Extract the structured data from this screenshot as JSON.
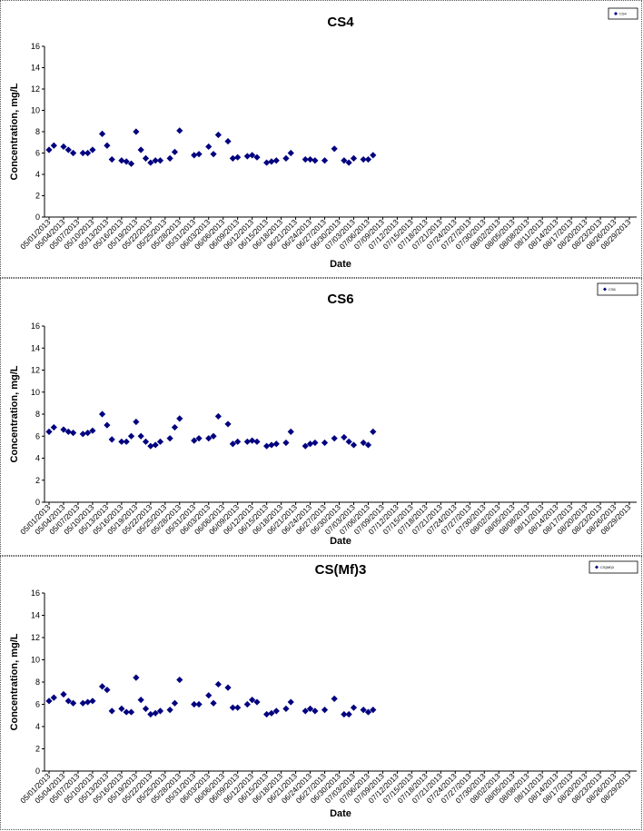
{
  "chart_data": [
    {
      "type": "scatter",
      "title": "CS4",
      "xlabel": "Date",
      "ylabel": "Concentration, mg/L",
      "ylim": [
        0,
        16
      ],
      "yticks": [
        "0",
        "2",
        "4",
        "6",
        "8",
        "10",
        "12",
        "14",
        "16"
      ],
      "xticks": [
        "05/01/2013",
        "05/04/2013",
        "05/07/2013",
        "05/10/2013",
        "05/13/2013",
        "05/16/2013",
        "05/19/2013",
        "05/22/2013",
        "05/25/2013",
        "05/28/2013",
        "05/31/2013",
        "06/03/2013",
        "06/06/2013",
        "06/09/2013",
        "06/12/2013",
        "06/15/2013",
        "06/18/2013",
        "06/21/2013",
        "06/24/2013",
        "06/27/2013",
        "06/30/2013",
        "07/03/2013",
        "07/06/2013",
        "07/09/2013",
        "07/12/2013",
        "07/15/2013",
        "07/18/2013",
        "07/21/2013",
        "07/24/2013",
        "07/27/2013",
        "07/30/2013",
        "08/02/2013",
        "08/05/2013",
        "08/08/2013",
        "08/11/2013",
        "08/14/2013",
        "08/17/2013",
        "08/20/2013",
        "08/23/2013",
        "08/26/2013",
        "08/29/2013"
      ],
      "legend_text": "CS4",
      "legend_position": "top-right",
      "marker_color": "#00007f",
      "points": [
        [
          "05/01/2013",
          6.3
        ],
        [
          "05/02/2013",
          6.7
        ],
        [
          "05/04/2013",
          6.6
        ],
        [
          "05/05/2013",
          6.3
        ],
        [
          "05/06/2013",
          6.0
        ],
        [
          "05/08/2013",
          6.0
        ],
        [
          "05/09/2013",
          6.0
        ],
        [
          "05/10/2013",
          6.3
        ],
        [
          "05/12/2013",
          7.8
        ],
        [
          "05/13/2013",
          6.7
        ],
        [
          "05/14/2013",
          5.4
        ],
        [
          "05/16/2013",
          5.3
        ],
        [
          "05/17/2013",
          5.2
        ],
        [
          "05/18/2013",
          5.0
        ],
        [
          "05/19/2013",
          8.0
        ],
        [
          "05/20/2013",
          6.3
        ],
        [
          "05/21/2013",
          5.5
        ],
        [
          "05/22/2013",
          5.1
        ],
        [
          "05/23/2013",
          5.3
        ],
        [
          "05/24/2013",
          5.3
        ],
        [
          "05/26/2013",
          5.5
        ],
        [
          "05/27/2013",
          6.1
        ],
        [
          "05/28/2013",
          8.1
        ],
        [
          "05/31/2013",
          5.8
        ],
        [
          "06/01/2013",
          5.9
        ],
        [
          "06/03/2013",
          6.6
        ],
        [
          "06/04/2013",
          5.9
        ],
        [
          "06/05/2013",
          7.7
        ],
        [
          "06/07/2013",
          7.1
        ],
        [
          "06/08/2013",
          5.5
        ],
        [
          "06/09/2013",
          5.6
        ],
        [
          "06/11/2013",
          5.7
        ],
        [
          "06/12/2013",
          5.8
        ],
        [
          "06/13/2013",
          5.6
        ],
        [
          "06/15/2013",
          5.1
        ],
        [
          "06/16/2013",
          5.2
        ],
        [
          "06/17/2013",
          5.3
        ],
        [
          "06/19/2013",
          5.5
        ],
        [
          "06/20/2013",
          6.0
        ],
        [
          "06/23/2013",
          5.4
        ],
        [
          "06/24/2013",
          5.4
        ],
        [
          "06/25/2013",
          5.3
        ],
        [
          "06/27/2013",
          5.3
        ],
        [
          "06/29/2013",
          6.4
        ],
        [
          "07/01/2013",
          5.3
        ],
        [
          "07/02/2013",
          5.1
        ],
        [
          "07/03/2013",
          5.5
        ],
        [
          "07/05/2013",
          5.4
        ],
        [
          "07/06/2013",
          5.4
        ],
        [
          "07/07/2013",
          5.8
        ]
      ]
    },
    {
      "type": "scatter",
      "title": "CS6",
      "xlabel": "Date",
      "ylabel": "Concentration, mg/L",
      "ylim": [
        0,
        16
      ],
      "yticks": [
        "0",
        "2",
        "4",
        "6",
        "8",
        "10",
        "12",
        "14",
        "16"
      ],
      "xticks": [
        "05/01/2013",
        "05/04/2013",
        "05/07/2013",
        "05/10/2013",
        "05/13/2013",
        "05/16/2013",
        "05/19/2013",
        "05/22/2013",
        "05/25/2013",
        "05/28/2013",
        "05/31/2013",
        "06/03/2013",
        "06/06/2013",
        "06/09/2013",
        "06/12/2013",
        "06/15/2013",
        "06/18/2013",
        "06/21/2013",
        "06/24/2013",
        "06/27/2013",
        "06/30/2013",
        "07/03/2013",
        "07/06/2013",
        "07/09/2013",
        "07/12/2013",
        "07/15/2013",
        "07/18/2013",
        "07/21/2013",
        "07/24/2013",
        "07/27/2013",
        "07/30/2013",
        "08/02/2013",
        "08/05/2013",
        "08/08/2013",
        "08/11/2013",
        "08/14/2013",
        "08/17/2013",
        "08/20/2013",
        "08/23/2013",
        "08/26/2013",
        "08/29/2013"
      ],
      "legend_text": "CS6",
      "legend_position": "top-right",
      "marker_color": "#00007f",
      "points": [
        [
          "05/01/2013",
          6.4
        ],
        [
          "05/02/2013",
          6.8
        ],
        [
          "05/04/2013",
          6.6
        ],
        [
          "05/05/2013",
          6.4
        ],
        [
          "05/06/2013",
          6.3
        ],
        [
          "05/08/2013",
          6.2
        ],
        [
          "05/09/2013",
          6.3
        ],
        [
          "05/10/2013",
          6.5
        ],
        [
          "05/12/2013",
          8.0
        ],
        [
          "05/13/2013",
          7.0
        ],
        [
          "05/14/2013",
          5.7
        ],
        [
          "05/16/2013",
          5.5
        ],
        [
          "05/17/2013",
          5.5
        ],
        [
          "05/18/2013",
          6.0
        ],
        [
          "05/19/2013",
          7.3
        ],
        [
          "05/20/2013",
          6.0
        ],
        [
          "05/21/2013",
          5.5
        ],
        [
          "05/22/2013",
          5.1
        ],
        [
          "05/23/2013",
          5.2
        ],
        [
          "05/24/2013",
          5.5
        ],
        [
          "05/26/2013",
          5.8
        ],
        [
          "05/27/2013",
          6.8
        ],
        [
          "05/28/2013",
          7.6
        ],
        [
          "05/31/2013",
          5.6
        ],
        [
          "06/01/2013",
          5.8
        ],
        [
          "06/03/2013",
          5.8
        ],
        [
          "06/04/2013",
          6.0
        ],
        [
          "06/05/2013",
          7.8
        ],
        [
          "06/07/2013",
          7.1
        ],
        [
          "06/08/2013",
          5.3
        ],
        [
          "06/09/2013",
          5.5
        ],
        [
          "06/11/2013",
          5.5
        ],
        [
          "06/12/2013",
          5.6
        ],
        [
          "06/13/2013",
          5.5
        ],
        [
          "06/15/2013",
          5.1
        ],
        [
          "06/16/2013",
          5.2
        ],
        [
          "06/17/2013",
          5.3
        ],
        [
          "06/19/2013",
          5.4
        ],
        [
          "06/20/2013",
          6.4
        ],
        [
          "06/23/2013",
          5.1
        ],
        [
          "06/24/2013",
          5.3
        ],
        [
          "06/25/2013",
          5.4
        ],
        [
          "06/27/2013",
          5.4
        ],
        [
          "06/29/2013",
          5.8
        ],
        [
          "07/01/2013",
          5.9
        ],
        [
          "07/02/2013",
          5.5
        ],
        [
          "07/03/2013",
          5.2
        ],
        [
          "07/05/2013",
          5.4
        ],
        [
          "07/06/2013",
          5.2
        ],
        [
          "07/07/2013",
          6.4
        ]
      ]
    },
    {
      "type": "scatter",
      "title": "CS(Mf)3",
      "xlabel": "Date",
      "ylabel": "Concentration, mg/L",
      "ylim": [
        0,
        16
      ],
      "yticks": [
        "0",
        "2",
        "4",
        "6",
        "8",
        "10",
        "12",
        "14",
        "16"
      ],
      "xticks": [
        "05/01/2013",
        "05/04/2013",
        "05/07/2013",
        "05/10/2013",
        "05/13/2013",
        "05/16/2013",
        "05/19/2013",
        "05/22/2013",
        "05/25/2013",
        "05/28/2013",
        "05/31/2013",
        "06/03/2013",
        "06/06/2013",
        "06/09/2013",
        "06/12/2013",
        "06/15/2013",
        "06/18/2013",
        "06/21/2013",
        "06/24/2013",
        "06/27/2013",
        "06/30/2013",
        "07/03/2013",
        "07/06/2013",
        "07/09/2013",
        "07/12/2013",
        "07/15/2013",
        "07/18/2013",
        "07/21/2013",
        "07/24/2013",
        "07/27/2013",
        "07/30/2013",
        "08/02/2013",
        "08/05/2013",
        "08/08/2013",
        "08/11/2013",
        "08/14/2013",
        "08/17/2013",
        "08/20/2013",
        "08/23/2013",
        "08/26/2013",
        "08/29/2013"
      ],
      "legend_text": "CS(Mf)3",
      "legend_position": "top-right",
      "marker_color": "#00007f",
      "points": [
        [
          "05/01/2013",
          6.3
        ],
        [
          "05/02/2013",
          6.6
        ],
        [
          "05/04/2013",
          6.9
        ],
        [
          "05/05/2013",
          6.3
        ],
        [
          "05/06/2013",
          6.1
        ],
        [
          "05/08/2013",
          6.1
        ],
        [
          "05/09/2013",
          6.2
        ],
        [
          "05/10/2013",
          6.3
        ],
        [
          "05/12/2013",
          7.6
        ],
        [
          "05/13/2013",
          7.3
        ],
        [
          "05/14/2013",
          5.4
        ],
        [
          "05/16/2013",
          5.6
        ],
        [
          "05/17/2013",
          5.3
        ],
        [
          "05/18/2013",
          5.3
        ],
        [
          "05/19/2013",
          8.4
        ],
        [
          "05/20/2013",
          6.4
        ],
        [
          "05/21/2013",
          5.6
        ],
        [
          "05/22/2013",
          5.1
        ],
        [
          "05/23/2013",
          5.2
        ],
        [
          "05/24/2013",
          5.4
        ],
        [
          "05/26/2013",
          5.5
        ],
        [
          "05/27/2013",
          6.1
        ],
        [
          "05/28/2013",
          8.2
        ],
        [
          "05/31/2013",
          6.0
        ],
        [
          "06/01/2013",
          6.0
        ],
        [
          "06/03/2013",
          6.8
        ],
        [
          "06/04/2013",
          6.1
        ],
        [
          "06/05/2013",
          7.8
        ],
        [
          "06/07/2013",
          7.5
        ],
        [
          "06/08/2013",
          5.7
        ],
        [
          "06/09/2013",
          5.7
        ],
        [
          "06/11/2013",
          6.0
        ],
        [
          "06/12/2013",
          6.4
        ],
        [
          "06/13/2013",
          6.2
        ],
        [
          "06/15/2013",
          5.1
        ],
        [
          "06/16/2013",
          5.2
        ],
        [
          "06/17/2013",
          5.4
        ],
        [
          "06/19/2013",
          5.6
        ],
        [
          "06/20/2013",
          6.2
        ],
        [
          "06/23/2013",
          5.4
        ],
        [
          "06/24/2013",
          5.6
        ],
        [
          "06/25/2013",
          5.4
        ],
        [
          "06/27/2013",
          5.5
        ],
        [
          "06/29/2013",
          6.5
        ],
        [
          "07/01/2013",
          5.1
        ],
        [
          "07/02/2013",
          5.1
        ],
        [
          "07/03/2013",
          5.7
        ],
        [
          "07/05/2013",
          5.5
        ],
        [
          "07/06/2013",
          5.3
        ],
        [
          "07/07/2013",
          5.5
        ]
      ]
    }
  ]
}
